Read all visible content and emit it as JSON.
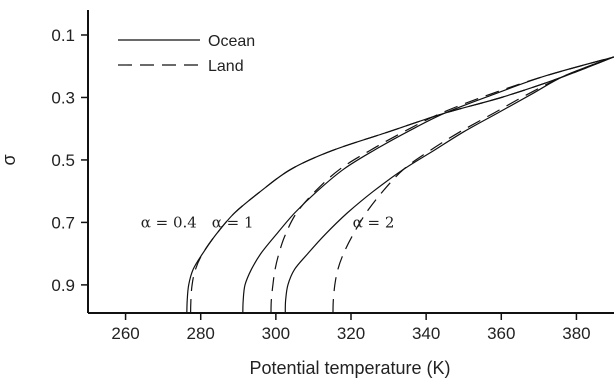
{
  "chart_data": {
    "type": "line",
    "xlabel": "Potential temperature (K)",
    "ylabel": "σ",
    "xlim": [
      250,
      390
    ],
    "ylim": [
      0.02,
      0.99
    ],
    "y_inverted": true,
    "grid": false,
    "legend_position": "top-left",
    "xticks": [
      260,
      280,
      300,
      320,
      340,
      360,
      380
    ],
    "yticks": [
      0.1,
      0.3,
      0.5,
      0.7,
      0.9
    ],
    "xtick_labels": [
      "260",
      "280",
      "300",
      "320",
      "340",
      "360",
      "380"
    ],
    "ytick_labels": [
      "0.1",
      "0.3",
      "0.5",
      "0.7",
      "0.9"
    ],
    "legend": [
      {
        "label": "Ocean",
        "style": "solid"
      },
      {
        "label": "Land",
        "style": "dashed"
      }
    ],
    "annotations": [
      {
        "text": "α = 0.4",
        "x": 271.5,
        "y": 0.7
      },
      {
        "text": "α = 1",
        "x": 288.5,
        "y": 0.7
      },
      {
        "text": "α = 2",
        "x": 326,
        "y": 0.7
      }
    ],
    "series": [
      {
        "name": "Ocean",
        "group": "α = 0.4",
        "style": "solid",
        "x": [
          276.3,
          276.4,
          276.8,
          278,
          280.5,
          284,
          289,
          296,
          304,
          315,
          330,
          345,
          360,
          375,
          390
        ],
        "y": [
          0.99,
          0.95,
          0.9,
          0.85,
          0.8,
          0.74,
          0.67,
          0.6,
          0.53,
          0.47,
          0.41,
          0.35,
          0.3,
          0.24,
          0.17
        ]
      },
      {
        "name": "Land",
        "group": "α = 0.4",
        "style": "dashed",
        "x": [
          277.3,
          277.4,
          277.7,
          278.6,
          280.5,
          284,
          289,
          296,
          304,
          315,
          330,
          345,
          360,
          375,
          390
        ],
        "y": [
          0.99,
          0.95,
          0.9,
          0.85,
          0.8,
          0.74,
          0.67,
          0.6,
          0.53,
          0.47,
          0.41,
          0.35,
          0.3,
          0.24,
          0.17
        ]
      },
      {
        "name": "Ocean",
        "group": "α = 1",
        "style": "solid",
        "x": [
          291.2,
          291.3,
          291.8,
          293.5,
          296,
          300,
          305,
          311,
          318,
          326,
          335,
          345,
          358,
          372,
          390
        ],
        "y": [
          0.99,
          0.95,
          0.9,
          0.85,
          0.8,
          0.74,
          0.67,
          0.6,
          0.53,
          0.47,
          0.41,
          0.35,
          0.29,
          0.23,
          0.17
        ]
      },
      {
        "name": "Land",
        "group": "α = 1",
        "style": "dashed",
        "x": [
          298.7,
          298.8,
          299.2,
          299.8,
          300.8,
          302.5,
          305.5,
          310.5,
          317,
          325,
          334,
          344,
          357,
          372,
          390
        ],
        "y": [
          0.99,
          0.95,
          0.9,
          0.85,
          0.8,
          0.74,
          0.67,
          0.6,
          0.53,
          0.47,
          0.41,
          0.35,
          0.29,
          0.23,
          0.17
        ]
      },
      {
        "name": "Ocean",
        "group": "α = 2",
        "style": "solid",
        "x": [
          302.5,
          302.6,
          303.2,
          305,
          308.5,
          313,
          319,
          326,
          334,
          342,
          350,
          359,
          368,
          377,
          390
        ],
        "y": [
          0.99,
          0.95,
          0.9,
          0.85,
          0.8,
          0.74,
          0.67,
          0.6,
          0.53,
          0.47,
          0.41,
          0.35,
          0.29,
          0.23,
          0.17
        ]
      },
      {
        "name": "Land",
        "group": "α = 2",
        "style": "dashed",
        "x": [
          315.2,
          315.3,
          315.7,
          316.5,
          318,
          320.5,
          324,
          328.5,
          334,
          341,
          349,
          358,
          367,
          377,
          390
        ],
        "y": [
          0.99,
          0.95,
          0.9,
          0.85,
          0.8,
          0.74,
          0.67,
          0.6,
          0.53,
          0.47,
          0.41,
          0.35,
          0.29,
          0.23,
          0.17
        ]
      }
    ]
  }
}
